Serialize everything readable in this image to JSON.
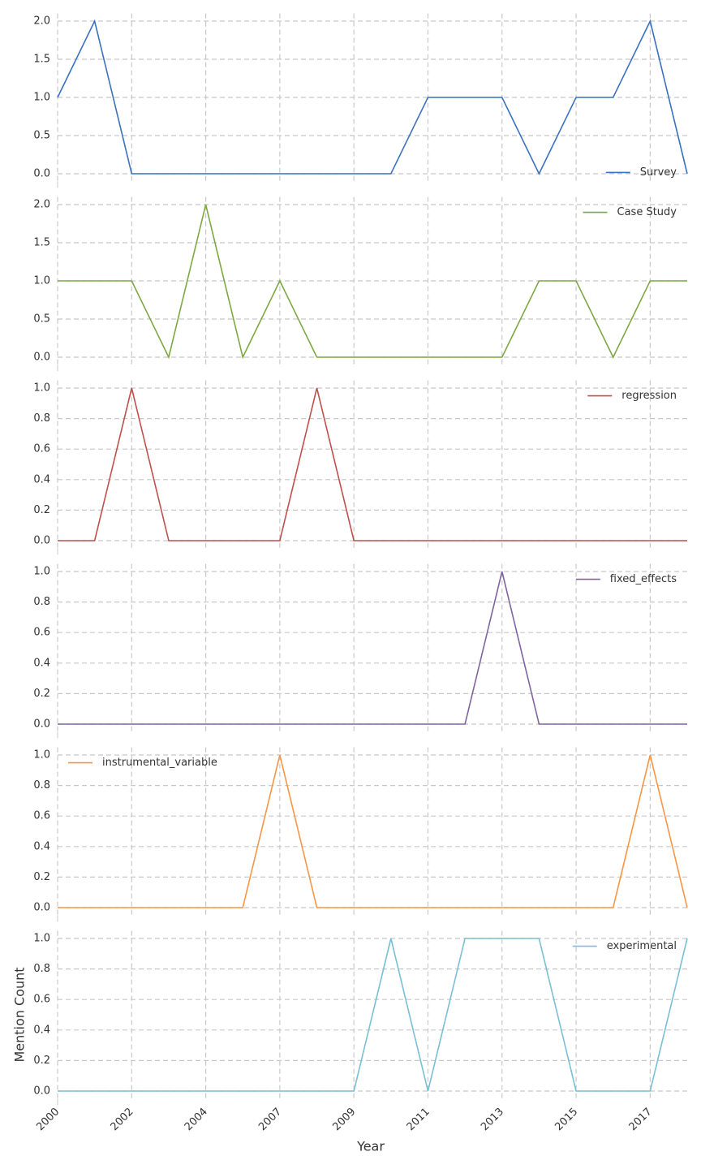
{
  "chart_data": [
    {
      "type": "line",
      "legend": "lower right",
      "grid": true,
      "ylim": [
        -0.1,
        2.1
      ],
      "yticks": [
        {
          "value": 0,
          "label": "0.0"
        },
        {
          "value": 0.5,
          "label": "0.5"
        },
        {
          "value": 1,
          "label": "1.0"
        },
        {
          "value": 1.5,
          "label": "1.5"
        },
        {
          "value": 2,
          "label": "2.0"
        }
      ],
      "series": [
        {
          "name": "Survey",
          "color": "#3b72c0",
          "values": [
            1,
            2,
            0,
            0,
            0,
            0,
            0,
            0,
            0,
            0,
            1,
            1,
            1,
            0,
            1,
            1,
            2,
            0
          ]
        }
      ]
    },
    {
      "type": "line",
      "legend": "upper right",
      "grid": true,
      "ylim": [
        -0.1,
        2.1
      ],
      "yticks": [
        {
          "value": 0,
          "label": "0.0"
        },
        {
          "value": 0.5,
          "label": "0.5"
        },
        {
          "value": 1,
          "label": "1.0"
        },
        {
          "value": 1.5,
          "label": "1.5"
        },
        {
          "value": 2,
          "label": "2.0"
        }
      ],
      "series": [
        {
          "name": "Case Study",
          "color": "#7ea843",
          "values": [
            1,
            1,
            1,
            0,
            2,
            0,
            1,
            0,
            0,
            0,
            0,
            0,
            0,
            1,
            1,
            0,
            1,
            1
          ]
        }
      ]
    },
    {
      "type": "line",
      "legend": "upper right",
      "grid": true,
      "ylim": [
        -0.05,
        1.05
      ],
      "yticks": [
        {
          "value": 0,
          "label": "0.0"
        },
        {
          "value": 0.2,
          "label": "0.2"
        },
        {
          "value": 0.4,
          "label": "0.4"
        },
        {
          "value": 0.6,
          "label": "0.6"
        },
        {
          "value": 0.8,
          "label": "0.8"
        },
        {
          "value": 1,
          "label": "1.0"
        }
      ],
      "series": [
        {
          "name": "regression",
          "color": "#c0504d",
          "values": [
            0,
            0,
            1,
            0,
            0,
            0,
            0,
            1,
            0,
            0,
            0,
            0,
            0,
            0,
            0,
            0,
            0,
            0
          ]
        }
      ]
    },
    {
      "type": "line",
      "legend": "upper right",
      "grid": true,
      "ylim": [
        -0.05,
        1.05
      ],
      "yticks": [
        {
          "value": 0,
          "label": "0.0"
        },
        {
          "value": 0.2,
          "label": "0.2"
        },
        {
          "value": 0.4,
          "label": "0.4"
        },
        {
          "value": 0.6,
          "label": "0.6"
        },
        {
          "value": 0.8,
          "label": "0.8"
        },
        {
          "value": 1,
          "label": "1.0"
        }
      ],
      "series": [
        {
          "name": "fixed_effects",
          "color": "#8064a2",
          "values": [
            0,
            0,
            0,
            0,
            0,
            0,
            0,
            0,
            0,
            0,
            0,
            0,
            1,
            0,
            0,
            0,
            0,
            0
          ]
        }
      ]
    },
    {
      "type": "line",
      "legend": "upper left",
      "grid": true,
      "ylim": [
        -0.05,
        1.05
      ],
      "yticks": [
        {
          "value": 0,
          "label": "0.0"
        },
        {
          "value": 0.2,
          "label": "0.2"
        },
        {
          "value": 0.4,
          "label": "0.4"
        },
        {
          "value": 0.6,
          "label": "0.6"
        },
        {
          "value": 0.8,
          "label": "0.8"
        },
        {
          "value": 1,
          "label": "1.0"
        }
      ],
      "series": [
        {
          "name": "instrumental_variable",
          "color": "#f79646",
          "values": [
            0,
            0,
            0,
            0,
            0,
            0,
            1,
            0,
            0,
            0,
            0,
            0,
            0,
            0,
            0,
            0,
            1,
            0
          ]
        }
      ]
    },
    {
      "type": "line",
      "legend": "upper right",
      "grid": true,
      "ylim": [
        -0.05,
        1.05
      ],
      "xlabel": "Year",
      "ylabel": "Mention Count",
      "categories": [
        "2000",
        null,
        "2002",
        null,
        "2004",
        null,
        "2007",
        null,
        "2009",
        null,
        "2011",
        null,
        "2013",
        null,
        "2015",
        null,
        "2017",
        null
      ],
      "yticks": [
        {
          "value": 0,
          "label": "0.0"
        },
        {
          "value": 0.2,
          "label": "0.2"
        },
        {
          "value": 0.4,
          "label": "0.4"
        },
        {
          "value": 0.6,
          "label": "0.6"
        },
        {
          "value": 0.8,
          "label": "0.8"
        },
        {
          "value": 1,
          "label": "1.0"
        }
      ],
      "series": [
        {
          "name": "experimental",
          "color": "#7ac0d4",
          "values": [
            0,
            0,
            0,
            0,
            0,
            0,
            0,
            0,
            0,
            1,
            0,
            1,
            1,
            1,
            0,
            0,
            0,
            1
          ]
        }
      ]
    }
  ]
}
